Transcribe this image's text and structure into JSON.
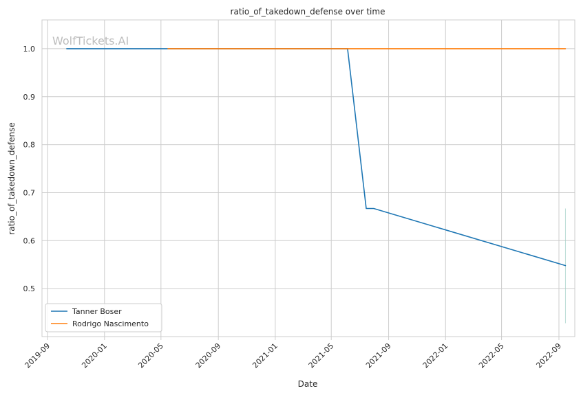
{
  "chart_data": {
    "type": "line",
    "title": "ratio_of_takedown_defense over time",
    "xlabel": "Date",
    "ylabel": "ratio_of_takedown_defense",
    "watermark": "WolfTickets.AI",
    "x_ticks": [
      "2019-09",
      "2020-01",
      "2020-05",
      "2020-09",
      "2021-01",
      "2021-05",
      "2021-09",
      "2022-01",
      "2022-05",
      "2022-09"
    ],
    "y_ticks": [
      "0.5",
      "0.6",
      "0.7",
      "0.8",
      "0.9",
      "1.0"
    ],
    "xlim": [
      "2019-08-20",
      "2022-10-05"
    ],
    "ylim": [
      0.4,
      1.06
    ],
    "grid": true,
    "legend_position": "lower-left",
    "series": [
      {
        "name": "Tanner Boser",
        "color": "#1f77b4",
        "points": [
          {
            "x": "2019-10-12",
            "y": 1.0
          },
          {
            "x": "2021-06-05",
            "y": 1.0
          },
          {
            "x": "2021-07-15",
            "y": 0.667
          },
          {
            "x": "2021-07-31",
            "y": 0.667
          },
          {
            "x": "2022-09-15",
            "y": 0.548
          }
        ]
      },
      {
        "name": "Rodrigo Nascimento",
        "color": "#ff7f0e",
        "points": [
          {
            "x": "2020-05-16",
            "y": 1.0
          },
          {
            "x": "2022-09-15",
            "y": 1.0
          }
        ]
      }
    ],
    "faint_vertical_mark": {
      "x": "2022-09-15",
      "y_low": 0.428,
      "y_high": 0.667,
      "color": "#9ecfc4"
    }
  }
}
